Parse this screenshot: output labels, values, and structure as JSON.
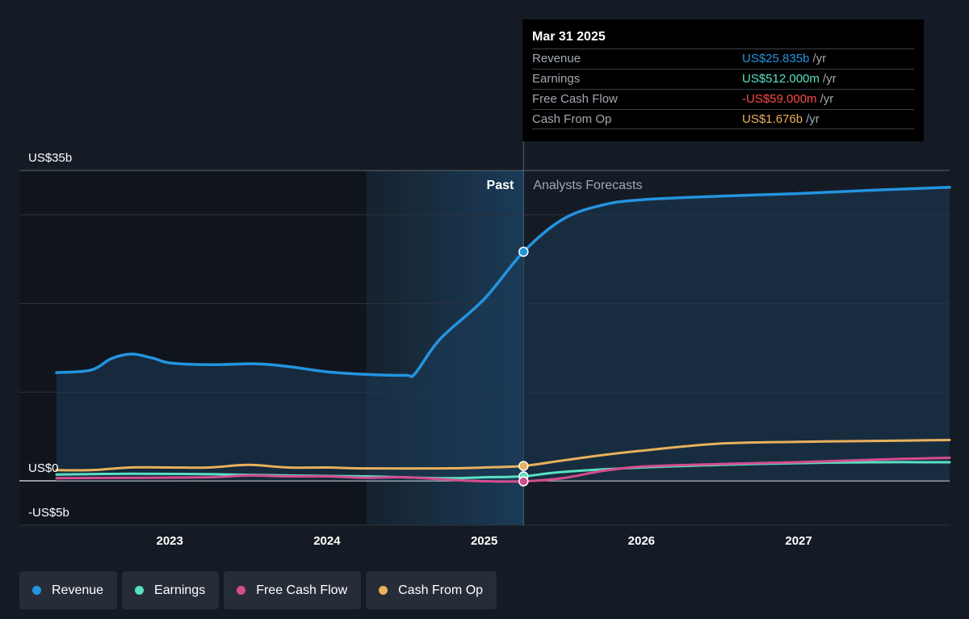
{
  "colors": {
    "background": "#151b24",
    "revenue": "#2394df",
    "earnings": "#59e0c2",
    "free_cash_flow": "#d44d8f",
    "cash_from_op": "#e8b15c",
    "negative": "#ff4a4a"
  },
  "tooltip": {
    "date": "Mar 31 2025",
    "rows": [
      {
        "label": "Revenue",
        "value": "US$25.835b",
        "unit": "/yr"
      },
      {
        "label": "Earnings",
        "value": "US$512.000m",
        "unit": "/yr"
      },
      {
        "label": "Free Cash Flow",
        "value": "-US$59.000m",
        "unit": "/yr"
      },
      {
        "label": "Cash From Op",
        "value": "US$1.676b",
        "unit": "/yr"
      }
    ]
  },
  "legend": [
    {
      "label": "Revenue",
      "icon": "revenue-dot-icon"
    },
    {
      "label": "Earnings",
      "icon": "earnings-dot-icon"
    },
    {
      "label": "Free Cash Flow",
      "icon": "free-cash-flow-dot-icon"
    },
    {
      "label": "Cash From Op",
      "icon": "cash-from-op-dot-icon"
    }
  ],
  "chart_data": {
    "type": "line",
    "title": "",
    "xlabel": "",
    "ylabel": "",
    "ylim": [
      -5,
      35
    ],
    "xlim": [
      2022.28,
      2027.96
    ],
    "y_tick_labels": [
      {
        "value": 35,
        "label": "US$35b"
      },
      {
        "value": 0,
        "label": "US$0"
      },
      {
        "value": -5,
        "label": "-US$5b"
      }
    ],
    "y_gridlines": [
      35,
      30,
      20,
      10,
      0,
      -5
    ],
    "x_ticks": [
      {
        "value": 2023,
        "label": "2023"
      },
      {
        "value": 2024,
        "label": "2024"
      },
      {
        "value": 2025,
        "label": "2025"
      },
      {
        "value": 2026,
        "label": "2026"
      },
      {
        "value": 2027,
        "label": "2027"
      }
    ],
    "highlight_start": 2024.25,
    "divider_x": 2025.25,
    "past_label": "Past",
    "forecast_label": "Analysts Forecasts",
    "grid": true,
    "legend_position": "bottom-left",
    "series": [
      {
        "name": "Revenue",
        "color": "#2394df",
        "fill": true,
        "points": [
          [
            2022.28,
            12.2
          ],
          [
            2022.5,
            12.5
          ],
          [
            2022.63,
            13.8
          ],
          [
            2022.76,
            14.3
          ],
          [
            2022.9,
            13.8
          ],
          [
            2023.0,
            13.3
          ],
          [
            2023.25,
            13.1
          ],
          [
            2023.55,
            13.2
          ],
          [
            2023.75,
            12.9
          ],
          [
            2024.0,
            12.3
          ],
          [
            2024.25,
            12.0
          ],
          [
            2024.5,
            11.9
          ],
          [
            2024.56,
            12.1
          ],
          [
            2024.72,
            16.0
          ],
          [
            2025.0,
            20.5
          ],
          [
            2025.25,
            25.835
          ],
          [
            2025.5,
            29.5
          ],
          [
            2025.75,
            31.1
          ],
          [
            2026.0,
            31.7
          ],
          [
            2026.5,
            32.1
          ],
          [
            2027.0,
            32.4
          ],
          [
            2027.5,
            32.8
          ],
          [
            2027.96,
            33.1
          ]
        ]
      },
      {
        "name": "Earnings",
        "color": "#59e0c2",
        "fill": false,
        "points": [
          [
            2022.28,
            0.7
          ],
          [
            2022.75,
            0.8
          ],
          [
            2023.25,
            0.75
          ],
          [
            2023.75,
            0.6
          ],
          [
            2024.25,
            0.5
          ],
          [
            2024.75,
            0.3
          ],
          [
            2025.0,
            0.4
          ],
          [
            2025.25,
            0.512
          ],
          [
            2025.5,
            1.0
          ],
          [
            2026.0,
            1.5
          ],
          [
            2026.5,
            1.8
          ],
          [
            2027.0,
            2.0
          ],
          [
            2027.5,
            2.1
          ],
          [
            2027.96,
            2.1
          ]
        ]
      },
      {
        "name": "Free Cash Flow",
        "color": "#d44d8f",
        "fill": false,
        "points": [
          [
            2022.28,
            0.3
          ],
          [
            2022.75,
            0.35
          ],
          [
            2023.25,
            0.4
          ],
          [
            2023.5,
            0.6
          ],
          [
            2023.75,
            0.5
          ],
          [
            2024.0,
            0.5
          ],
          [
            2024.25,
            0.35
          ],
          [
            2024.5,
            0.4
          ],
          [
            2024.75,
            0.15
          ],
          [
            2025.0,
            -0.05
          ],
          [
            2025.25,
            -0.059
          ],
          [
            2025.5,
            0.3
          ],
          [
            2025.75,
            1.1
          ],
          [
            2026.0,
            1.6
          ],
          [
            2026.5,
            1.9
          ],
          [
            2027.0,
            2.1
          ],
          [
            2027.5,
            2.4
          ],
          [
            2027.96,
            2.6
          ]
        ]
      },
      {
        "name": "Cash From Op",
        "color": "#e8b15c",
        "fill": false,
        "points": [
          [
            2022.28,
            1.2
          ],
          [
            2022.5,
            1.2
          ],
          [
            2022.75,
            1.5
          ],
          [
            2023.0,
            1.5
          ],
          [
            2023.25,
            1.5
          ],
          [
            2023.5,
            1.8
          ],
          [
            2023.75,
            1.5
          ],
          [
            2024.0,
            1.5
          ],
          [
            2024.25,
            1.4
          ],
          [
            2024.75,
            1.4
          ],
          [
            2025.0,
            1.5
          ],
          [
            2025.25,
            1.676
          ],
          [
            2025.5,
            2.3
          ],
          [
            2025.75,
            2.9
          ],
          [
            2026.0,
            3.4
          ],
          [
            2026.5,
            4.2
          ],
          [
            2027.0,
            4.4
          ],
          [
            2027.5,
            4.5
          ],
          [
            2027.96,
            4.6
          ]
        ]
      }
    ],
    "markers": [
      {
        "series": "Revenue",
        "x": 2025.25,
        "y": 25.835
      },
      {
        "series": "Cash From Op",
        "x": 2025.25,
        "y": 1.676
      },
      {
        "series": "Earnings",
        "x": 2025.25,
        "y": 0.512
      },
      {
        "series": "Free Cash Flow",
        "x": 2025.25,
        "y": -0.059
      }
    ]
  }
}
